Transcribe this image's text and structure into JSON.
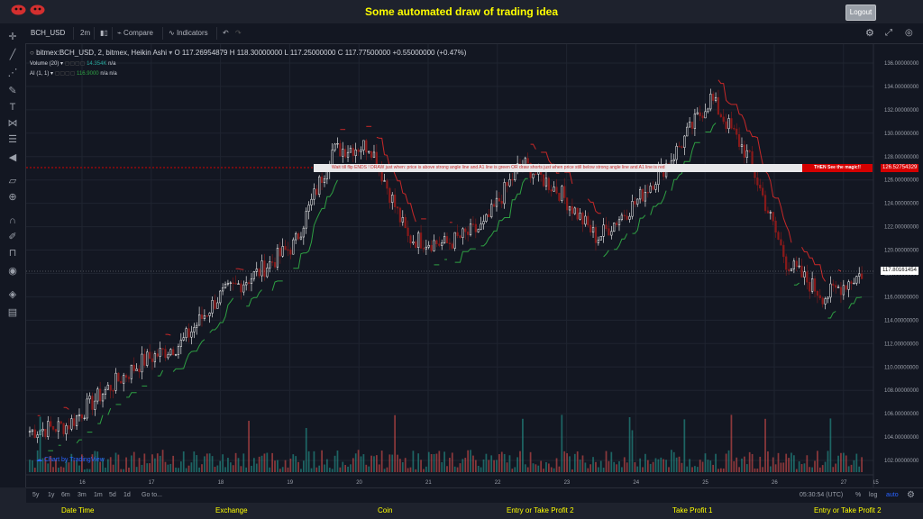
{
  "header": {
    "title": "Some automated draw of trading idea",
    "logout_label": "Logout"
  },
  "toolbar": {
    "symbol": "BCH_USD",
    "interval": "2m",
    "compare_label": "Compare",
    "indicators_label": "Indicators"
  },
  "legend": {
    "main": "bitmex:BCH_USD, 2, bitmex, Heikin Ashi",
    "open": "O 117.26954879",
    "high": "H 118.30000000",
    "low": "L 117.25000000",
    "close": "C 117.77500000",
    "change": "+0.55000000 (+0.47%)",
    "volume_label": "Volume (20)",
    "volume_value": "14.354K",
    "volume_na": "n/a",
    "ai_label": "AI (1, 1)",
    "ai_value": "116.9000",
    "ai_na1": "n/a",
    "ai_na2": "n/a"
  },
  "idea": {
    "banner_text": "Wait till flip ENDS  !  DRAW just when:  price is above strong angle line and A1 line is green        OR        draw shorts just when price still below strong angle line and A1 line is red",
    "magic_label": "THEN See the magic!!"
  },
  "price_axis": {
    "labels": [
      "136.00000000",
      "134.00000000",
      "132.00000000",
      "130.00000000",
      "128.00000000",
      "126.00000000",
      "124.00000000",
      "122.00000000",
      "120.00000000",
      "118.00000000",
      "116.00000000",
      "114.00000000",
      "112.00000000",
      "110.00000000",
      "108.00000000",
      "106.00000000",
      "104.00000000",
      "102.00000000"
    ],
    "current_price": "117.80161454",
    "idea_price": "126.52754329"
  },
  "time_axis": {
    "labels": [
      "16",
      "17",
      "18",
      "19",
      "20",
      "21",
      "22",
      "23",
      "24",
      "25",
      "26",
      "27",
      "15"
    ]
  },
  "bottom": {
    "ranges": [
      "5y",
      "1y",
      "6m",
      "3m",
      "1m",
      "5d",
      "1d"
    ],
    "goto_label": "Go to...",
    "clock": "05:30:54 (UTC)",
    "pct_label": "%",
    "log_label": "log",
    "auto_label": "auto"
  },
  "watermark": "Chart by TradingView",
  "footer": {
    "items": [
      "Date Time",
      "Exchange",
      "Coin",
      "Entry or Take Profit 2",
      "Take Profit 1",
      "Entry or Take Profit 2"
    ]
  },
  "chart_data": {
    "type": "candlestick",
    "x": [
      "16",
      "16.5",
      "17",
      "17.5",
      "18",
      "18.5",
      "19",
      "19.5",
      "20",
      "20.5",
      "21",
      "21.5",
      "22",
      "22.5",
      "23",
      "23.5",
      "24",
      "24.5",
      "25",
      "25.5",
      "26",
      "26.5",
      "27"
    ],
    "close": [
      104.5,
      105.0,
      108.0,
      110.5,
      112.0,
      116.0,
      118.0,
      120.5,
      128.5,
      129.0,
      121.0,
      120.5,
      122.0,
      127.5,
      125.0,
      121.0,
      124.0,
      128.0,
      133.0,
      128.0,
      119.0,
      116.0,
      118.0
    ],
    "ylim": [
      101,
      137
    ],
    "colors": {
      "up": "#ffffff",
      "down": "#8a1a1a",
      "ai_green": "#2ea043",
      "ai_red": "#c62828",
      "volume_up": "#26a69a",
      "volume_down": "#ef5350"
    }
  }
}
